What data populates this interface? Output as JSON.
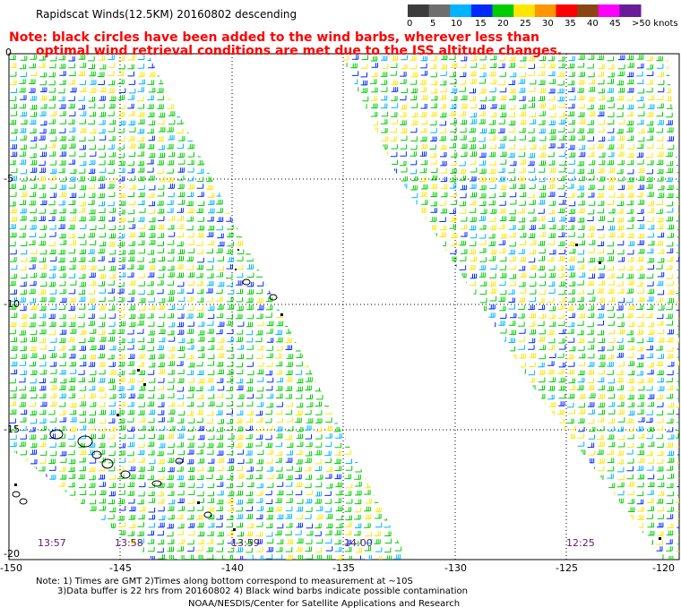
{
  "header": {
    "title": "Rapidscat Winds(12.5KM) 20160802 descending",
    "note_line1": "Note: black circles have been added to the wind barbs, wherever less than",
    "note_line2": "optimal wind retrieval conditions are met due to the ISS altitude changes."
  },
  "legend": {
    "labels": [
      "0",
      "5",
      "10",
      "15",
      "20",
      "25",
      "30",
      "35",
      "40",
      "45",
      ">50 knots"
    ],
    "colors": [
      "#3c3c3c",
      "#6e6e6e",
      "#00b4ff",
      "#0028ff",
      "#00cc00",
      "#ffe600",
      "#ff9600",
      "#ff0000",
      "#8b4513",
      "#ff00ff",
      "#6a1b9a"
    ]
  },
  "axes": {
    "y_labels": [
      "0",
      "-5",
      "-10",
      "-15",
      "-20"
    ],
    "x_labels": [
      "-150",
      "-145",
      "-140",
      "-135",
      "-130",
      "-125",
      "-120"
    ]
  },
  "times": [
    "13:57",
    "13:58",
    "13:59",
    "14:00",
    "12:25"
  ],
  "footer": {
    "line1": "Note: 1) Times are GMT 2)Times along bottom correspond to measurement at ~10S",
    "line2": "3)Data buffer is 22 hrs from 20160802 4) Black wind barbs indicate possible contamination",
    "line3": "NOAA/NESDIS/Center for Satellite Applications and Research"
  }
}
